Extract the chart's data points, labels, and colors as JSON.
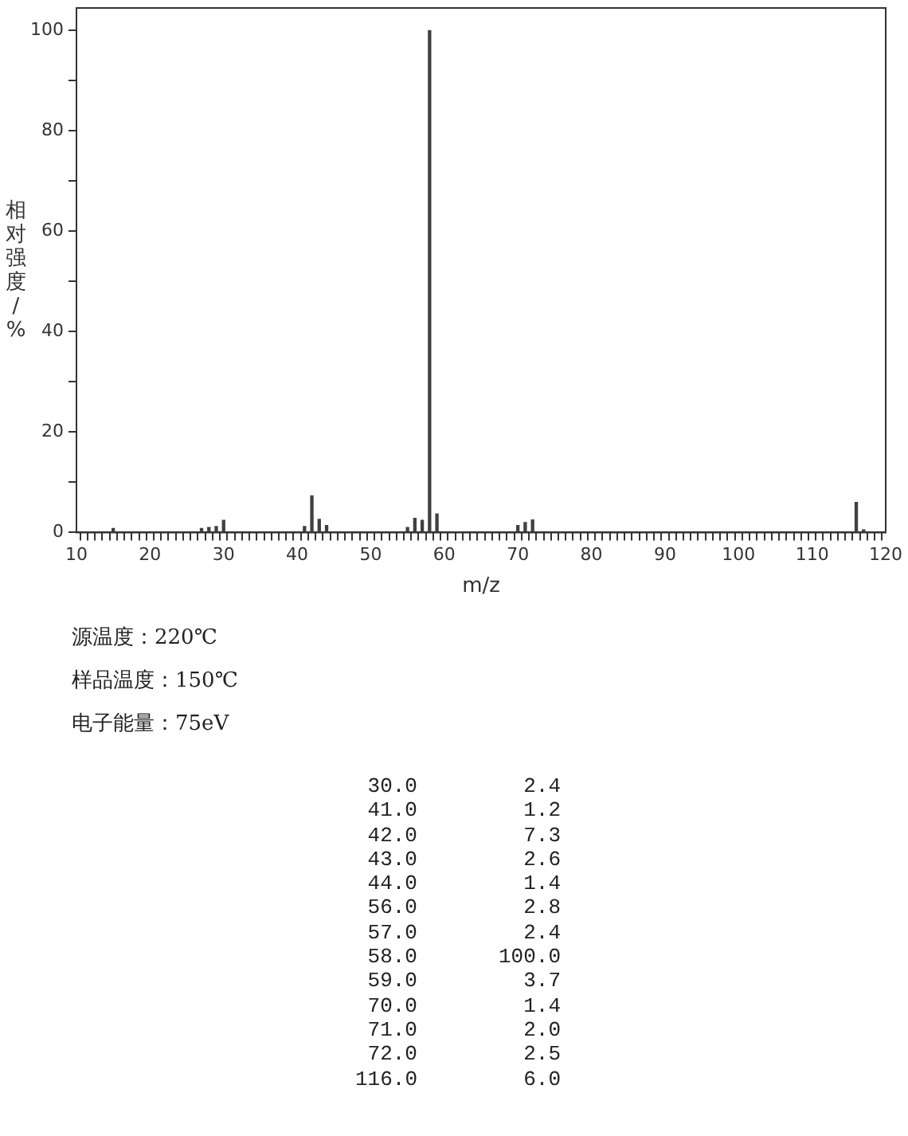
{
  "chart_data": [
    {
      "type": "bar",
      "xlabel": "m/z",
      "ylabel": "相对强度/%",
      "x": [
        15,
        27,
        28,
        29,
        30,
        41,
        42,
        43,
        44,
        55,
        56,
        57,
        58,
        59,
        70,
        71,
        72,
        116,
        117
      ],
      "values": [
        0.8,
        0.8,
        1.0,
        1.2,
        2.4,
        1.2,
        7.3,
        2.6,
        1.4,
        1.0,
        2.8,
        2.4,
        100.0,
        3.7,
        1.4,
        2.0,
        2.5,
        6.0,
        0.5
      ],
      "color": "#404040",
      "xlim": [
        10,
        120
      ],
      "xticks": [
        10,
        {
          "value": 11,
          "label": null
        },
        {
          "value": 12,
          "label": null
        },
        {
          "value": 13,
          "label": null
        },
        {
          "value": 14,
          "label": null
        },
        {
          "value": 15,
          "label": null
        },
        {
          "value": 16,
          "label": null
        },
        {
          "value": 17,
          "label": null
        },
        {
          "value": 18,
          "label": null
        },
        {
          "value": 19,
          "label": null
        },
        20,
        {
          "value": 21,
          "label": null
        },
        {
          "value": 22,
          "label": null
        },
        {
          "value": 23,
          "label": null
        },
        {
          "value": 24,
          "label": null
        },
        {
          "value": 25,
          "label": null
        },
        {
          "value": 26,
          "label": null
        },
        {
          "value": 27,
          "label": null
        },
        {
          "value": 28,
          "label": null
        },
        {
          "value": 29,
          "label": null
        },
        30,
        {
          "value": 31,
          "label": null
        },
        {
          "value": 32,
          "label": null
        },
        {
          "value": 33,
          "label": null
        },
        {
          "value": 34,
          "label": null
        },
        {
          "value": 35,
          "label": null
        },
        {
          "value": 36,
          "label": null
        },
        {
          "value": 37,
          "label": null
        },
        {
          "value": 38,
          "label": null
        },
        {
          "value": 39,
          "label": null
        },
        40,
        {
          "value": 41,
          "label": null
        },
        {
          "value": 42,
          "label": null
        },
        {
          "value": 43,
          "label": null
        },
        {
          "value": 44,
          "label": null
        },
        {
          "value": 45,
          "label": null
        },
        {
          "value": 46,
          "label": null
        },
        {
          "value": 47,
          "label": null
        },
        {
          "value": 48,
          "label": null
        },
        {
          "value": 49,
          "label": null
        },
        50,
        {
          "value": 51,
          "label": null
        },
        {
          "value": 52,
          "label": null
        },
        {
          "value": 53,
          "label": null
        },
        {
          "value": 54,
          "label": null
        },
        {
          "value": 55,
          "label": null
        },
        {
          "value": 56,
          "label": null
        },
        {
          "value": 57,
          "label": null
        },
        {
          "value": 58,
          "label": null
        },
        {
          "value": 59,
          "label": null
        },
        60,
        {
          "value": 61,
          "label": null
        },
        {
          "value": 62,
          "label": null
        },
        {
          "value": 63,
          "label": null
        },
        {
          "value": 64,
          "label": null
        },
        {
          "value": 65,
          "label": null
        },
        {
          "value": 66,
          "label": null
        },
        {
          "value": 67,
          "label": null
        },
        {
          "value": 68,
          "label": null
        },
        {
          "value": 69,
          "label": null
        },
        70,
        {
          "value": 71,
          "label": null
        },
        {
          "value": 72,
          "label": null
        },
        {
          "value": 73,
          "label": null
        },
        {
          "value": 74,
          "label": null
        },
        {
          "value": 75,
          "label": null
        },
        {
          "value": 76,
          "label": null
        },
        {
          "value": 77,
          "label": null
        },
        {
          "value": 78,
          "label": null
        },
        {
          "value": 79,
          "label": null
        },
        80,
        {
          "value": 81,
          "label": null
        },
        {
          "value": 82,
          "label": null
        },
        {
          "value": 83,
          "label": null
        },
        {
          "value": 84,
          "label": null
        },
        {
          "value": 85,
          "label": null
        },
        {
          "value": 86,
          "label": null
        },
        {
          "value": 87,
          "label": null
        },
        {
          "value": 88,
          "label": null
        },
        {
          "value": 89,
          "label": null
        },
        90,
        {
          "value": 91,
          "label": null
        },
        {
          "value": 92,
          "label": null
        },
        {
          "value": 93,
          "label": null
        },
        {
          "value": 94,
          "label": null
        },
        {
          "value": 95,
          "label": null
        },
        {
          "value": 96,
          "label": null
        },
        {
          "value": 97,
          "label": null
        },
        {
          "value": 98,
          "label": null
        },
        {
          "value": 99,
          "label": null
        },
        100,
        {
          "value": 101,
          "label": null
        },
        {
          "value": 102,
          "label": null
        },
        {
          "value": 103,
          "label": null
        },
        {
          "value": 104,
          "label": null
        },
        {
          "value": 105,
          "label": null
        },
        {
          "value": 106,
          "label": null
        },
        {
          "value": 107,
          "label": null
        },
        {
          "value": 108,
          "label": null
        },
        {
          "value": 109,
          "label": null
        },
        110,
        {
          "value": 111,
          "label": null
        },
        {
          "value": 112,
          "label": null
        },
        {
          "value": 113,
          "label": null
        },
        {
          "value": 114,
          "label": null
        },
        {
          "value": 115,
          "label": null
        },
        {
          "value": 116,
          "label": null
        },
        {
          "value": 117,
          "label": null
        },
        {
          "value": 118,
          "label": null
        },
        {
          "value": 119,
          "label": null
        },
        120
      ],
      "ylim": [
        0,
        104.5
      ],
      "yticks": [
        0,
        {
          "value": 10,
          "label": null
        },
        20,
        {
          "value": 30,
          "label": null
        },
        40,
        {
          "value": 50,
          "label": null
        },
        60,
        {
          "value": 70,
          "label": null
        },
        80,
        {
          "value": 90,
          "label": null
        },
        100
      ],
      "grid": false,
      "legend": false,
      "annotations": [
        "源温度：220℃",
        "样品温度：150℃",
        "电子能量：75eV"
      ]
    },
    {
      "type": "other",
      "categories": [
        "30.0",
        "41.0",
        "42.0",
        "43.0",
        "44.0",
        "56.0",
        "57.0",
        "58.0",
        "59.0",
        "70.0",
        "71.0",
        "72.0",
        "116.0"
      ],
      "value_labels": [
        "2.4",
        "1.2",
        "7.3",
        "2.6",
        "1.4",
        "2.8",
        "2.4",
        "100.0",
        "3.7",
        "1.4",
        "2.0",
        "2.5",
        "6.0"
      ]
    }
  ]
}
